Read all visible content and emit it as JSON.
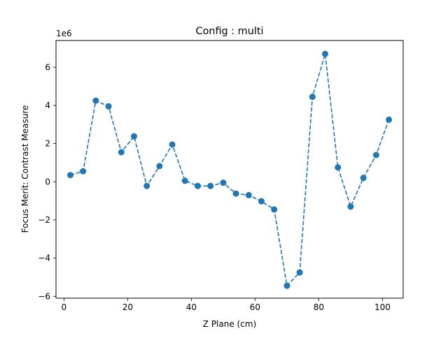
{
  "chart_data": {
    "type": "line",
    "title": "Config : multi",
    "xlabel": "Z Plane (cm)",
    "ylabel": "Focus Merit: Contrast Measure",
    "y_scale_label": "1e6",
    "xlim": [
      -2.5,
      106.5
    ],
    "ylim": [
      -6.1,
      7.4
    ],
    "x_ticks": [
      0,
      20,
      40,
      60,
      80,
      100
    ],
    "y_ticks": [
      -6,
      -4,
      -2,
      0,
      2,
      4,
      6
    ],
    "x_tick_labels": [
      "0",
      "20",
      "40",
      "60",
      "80",
      "100"
    ],
    "y_tick_labels": [
      "−6",
      "−4",
      "−2",
      "0",
      "2",
      "4",
      "6"
    ],
    "grid": false,
    "legend": "none",
    "series": [
      {
        "line_style": "dashed",
        "marker": "circle",
        "color": "#1f77b4",
        "x": [
          2,
          6,
          10,
          14,
          18,
          22,
          26,
          30,
          34,
          38,
          42,
          46,
          50,
          54,
          58,
          62,
          66,
          70,
          74,
          78,
          82,
          86,
          90,
          94,
          98,
          102
        ],
        "y": [
          0.35,
          0.55,
          4.25,
          3.95,
          1.55,
          2.38,
          -0.22,
          0.82,
          1.95,
          0.05,
          -0.22,
          -0.22,
          -0.05,
          -0.62,
          -0.7,
          -1.02,
          -1.45,
          -5.45,
          -4.75,
          4.45,
          6.7,
          0.75,
          -1.3,
          0.2,
          1.4,
          3.25
        ]
      }
    ]
  }
}
